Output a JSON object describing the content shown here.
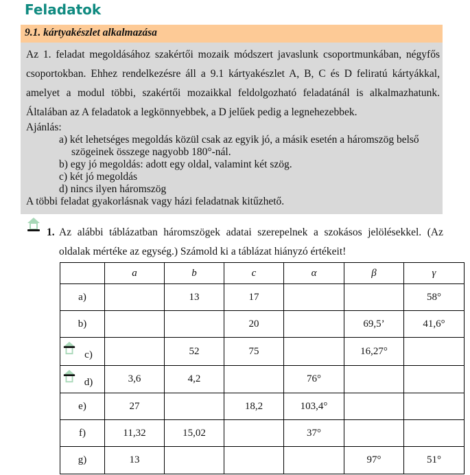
{
  "title": "Feladatok",
  "section": "9.1. kártyakészlet alkalmazása",
  "intro": "Az 1. feladat megoldásához szakértői mozaik módszert javaslunk csoportmunkában, négyfős csoportokban. Ehhez rendelkezésre áll a 9.1 kártyakészlet A, B, C és D feliratú kártyákkal, amelyet a modul többi, szakértői mozaikkal feldolgozható feladatánál is alkalmazhatunk. Általában az A feladatok a legkönnyebbek, a D jelűek pedig a legnehezebbek.",
  "recommendation_label": "Ajánlás:",
  "recommendations": [
    "a) két lehetséges megoldás közül csak az egyik jó, a másik esetén a háromszög belső",
    "szögeinek összege nagyobb 180°-nál.",
    "b) egy jó megoldás: adott egy oldal, valamint két szög.",
    "c) két jó megoldás",
    "d) nincs ilyen háromszög"
  ],
  "closing": "A többi feladat gyakorlásnak vagy házi feladatnak kitűzhető.",
  "task_number": "1.",
  "task_text": "Az alábbi táblázatban háromszögek adatai szerepelnek a szokásos jelölésekkel. (Az oldalak mértéke az egység.) Számold ki a táblázat hiányzó értékeit!",
  "icon": "house-icon",
  "table": {
    "headers": [
      "",
      "a",
      "b",
      "c",
      "α",
      "β",
      "γ"
    ],
    "rows": [
      [
        "a)",
        "",
        "13",
        "17",
        "",
        "",
        "58°"
      ],
      [
        "b)",
        "",
        "",
        "20",
        "",
        "69,5’",
        "41,6°"
      ],
      [
        "c)",
        "",
        "52",
        "75",
        "",
        "16,27°",
        ""
      ],
      [
        "d)",
        "3,6",
        "4,2",
        "",
        "76°",
        "",
        ""
      ],
      [
        "e)",
        "27",
        "",
        "18,2",
        "103,4°",
        "",
        ""
      ],
      [
        "f)",
        "11,32",
        "15,02",
        "",
        "37°",
        "",
        ""
      ],
      [
        "g)",
        "13",
        "",
        "",
        "",
        "97°",
        "51°"
      ]
    ]
  }
}
